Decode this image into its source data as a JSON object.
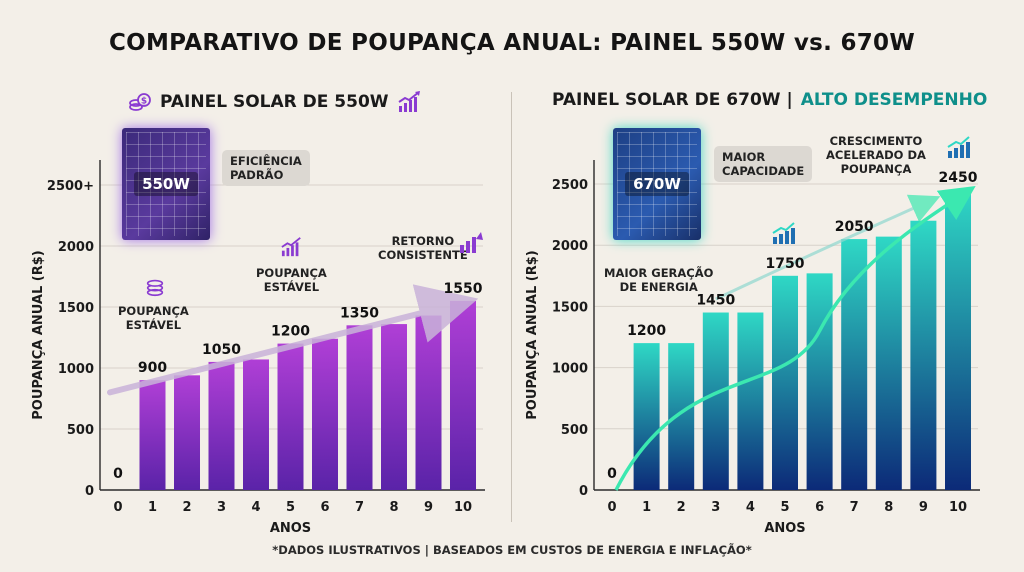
{
  "title": "COMPARATIVO DE POUPANÇA ANUAL: PAINEL 550W vs. 670W",
  "footnote": "*DADOS ILUSTRATIVOS | BASEADOS EM CUSTOS DE ENERGIA E INFLAÇÃO*",
  "left": {
    "heading": "PAINEL SOLAR DE 550W",
    "panel_label": "550W",
    "callout": [
      "EFICIÊNCIA",
      "PADRÃO"
    ],
    "notes": {
      "poupanca_estavel_1": [
        "POUPANÇA",
        "ESTÁVEL"
      ],
      "poupanca_estavel_2": [
        "POUPANÇA",
        "ESTÁVEL"
      ],
      "retorno": [
        "RETORNO",
        "CONSISTENTE"
      ]
    },
    "colors": {
      "bar_top": "#b03fd6",
      "bar_bottom": "#5a23a8",
      "trend": "#c9b3d9"
    }
  },
  "right": {
    "heading_main": "PAINEL SOLAR DE 670W |",
    "heading_accent": "ALTO DESEMPENHO",
    "panel_label": "670W",
    "callout": [
      "MAIOR",
      "CAPACIDADE"
    ],
    "notes": {
      "maior_geracao": [
        "MAIOR GERAÇÃO",
        "DE ENERGIA"
      ],
      "crescimento": [
        "CRESCIMENTO",
        "ACELERADO DA",
        "POUPANÇA"
      ]
    },
    "colors": {
      "bar_top": "#2fd8c5",
      "bar_bottom": "#0c2a78",
      "trend": "#3be8b0"
    }
  },
  "chart_data": [
    {
      "type": "bar",
      "title": "PAINEL SOLAR DE 550W",
      "xlabel": "ANOS",
      "ylabel": "POUPANÇA ANUAL (R$)",
      "categories": [
        "0",
        "1",
        "2",
        "3",
        "4",
        "5",
        "6",
        "7",
        "8",
        "9",
        "10"
      ],
      "values": [
        0,
        900,
        940,
        1050,
        1070,
        1200,
        1240,
        1350,
        1360,
        1430,
        1550
      ],
      "value_labels": {
        "0": "0",
        "1": "900",
        "3": "1050",
        "5": "1200",
        "7": "1350",
        "10": "1550"
      },
      "yticks": [
        "0",
        "500",
        "1000",
        "1500",
        "2000",
        "2500+"
      ],
      "ylim": [
        0,
        2500
      ],
      "grid": true
    },
    {
      "type": "bar",
      "title": "PAINEL SOLAR DE 670W | ALTO DESEMPENHO",
      "xlabel": "ANOS",
      "ylabel": "POUPANÇA ANUAL (R$)",
      "categories": [
        "0",
        "1",
        "2",
        "3",
        "4",
        "5",
        "6",
        "7",
        "8",
        "9",
        "10"
      ],
      "values": [
        0,
        1200,
        1200,
        1450,
        1450,
        1750,
        1770,
        2050,
        2070,
        2200,
        2450
      ],
      "value_labels": {
        "0": "0",
        "1": "1200",
        "3": "1450",
        "5": "1750",
        "7": "2050",
        "10": "2450"
      },
      "yticks": [
        "0",
        "500",
        "1000",
        "1500",
        "2000",
        "2500"
      ],
      "ylim": [
        0,
        2500
      ],
      "grid": true
    }
  ]
}
